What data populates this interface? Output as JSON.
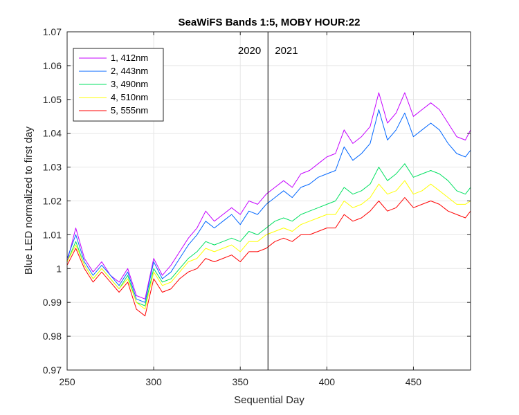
{
  "chart_data": {
    "type": "line",
    "title": "SeaWiFS Bands 1:5, MOBY HOUR:22",
    "xlabel": "Sequential Day",
    "ylabel": "Blue LED normalized to first day",
    "xlim": [
      250,
      483
    ],
    "ylim": [
      0.97,
      1.07
    ],
    "xticks": [
      "250",
      "300",
      "350",
      "400",
      "450"
    ],
    "yticks": [
      "0.97",
      "0.98",
      "0.99",
      "1",
      "1.01",
      "1.02",
      "1.03",
      "1.04",
      "1.05",
      "1.06",
      "1.07"
    ],
    "grid": true,
    "legend_position": "top-left",
    "vertical_line_x": 366,
    "annotations": [
      "2020",
      "2021"
    ],
    "x": [
      250,
      255,
      260,
      265,
      270,
      275,
      280,
      285,
      290,
      295,
      300,
      305,
      310,
      315,
      320,
      325,
      330,
      335,
      340,
      345,
      350,
      355,
      360,
      365,
      370,
      375,
      380,
      385,
      390,
      395,
      400,
      405,
      410,
      415,
      420,
      425,
      430,
      435,
      440,
      445,
      450,
      455,
      460,
      465,
      470,
      475,
      480,
      483
    ],
    "series": [
      {
        "name": "1, 412nm",
        "color": "#c400ff",
        "values": [
          1.002,
          1.012,
          1.003,
          0.999,
          1.002,
          0.998,
          0.996,
          1.0,
          0.992,
          0.991,
          1.003,
          0.998,
          1.001,
          1.005,
          1.009,
          1.012,
          1.017,
          1.014,
          1.016,
          1.018,
          1.016,
          1.02,
          1.019,
          1.022,
          1.024,
          1.026,
          1.024,
          1.028,
          1.029,
          1.031,
          1.033,
          1.034,
          1.041,
          1.037,
          1.039,
          1.042,
          1.052,
          1.043,
          1.046,
          1.052,
          1.045,
          1.047,
          1.049,
          1.047,
          1.043,
          1.039,
          1.038,
          1.041
        ]
      },
      {
        "name": "2, 443nm",
        "color": "#0066ff",
        "values": [
          1.003,
          1.01,
          1.002,
          0.998,
          1.001,
          0.998,
          0.995,
          0.999,
          0.991,
          0.99,
          1.002,
          0.997,
          0.999,
          1.003,
          1.007,
          1.01,
          1.014,
          1.012,
          1.014,
          1.016,
          1.013,
          1.017,
          1.016,
          1.019,
          1.021,
          1.023,
          1.021,
          1.024,
          1.025,
          1.027,
          1.028,
          1.029,
          1.036,
          1.032,
          1.034,
          1.037,
          1.047,
          1.038,
          1.041,
          1.046,
          1.039,
          1.041,
          1.043,
          1.041,
          1.037,
          1.034,
          1.033,
          1.035
        ]
      },
      {
        "name": "3, 490nm",
        "color": "#00e060",
        "values": [
          1.002,
          1.008,
          1.001,
          0.997,
          1.0,
          0.997,
          0.994,
          0.998,
          0.99,
          0.989,
          1.0,
          0.996,
          0.997,
          1.0,
          1.003,
          1.005,
          1.008,
          1.007,
          1.008,
          1.009,
          1.008,
          1.011,
          1.01,
          1.012,
          1.014,
          1.015,
          1.014,
          1.016,
          1.017,
          1.018,
          1.019,
          1.02,
          1.024,
          1.022,
          1.023,
          1.025,
          1.03,
          1.026,
          1.028,
          1.031,
          1.027,
          1.028,
          1.029,
          1.028,
          1.026,
          1.023,
          1.022,
          1.024
        ]
      },
      {
        "name": "4, 510nm",
        "color": "#ffff00",
        "values": [
          1.002,
          1.007,
          1.001,
          0.997,
          1.0,
          0.997,
          0.994,
          0.997,
          0.99,
          0.988,
          0.999,
          0.995,
          0.996,
          0.999,
          1.002,
          1.003,
          1.006,
          1.005,
          1.006,
          1.007,
          1.005,
          1.008,
          1.008,
          1.01,
          1.011,
          1.012,
          1.011,
          1.013,
          1.014,
          1.015,
          1.016,
          1.016,
          1.02,
          1.018,
          1.019,
          1.021,
          1.025,
          1.022,
          1.023,
          1.026,
          1.022,
          1.023,
          1.025,
          1.023,
          1.021,
          1.019,
          1.019,
          1.02
        ]
      },
      {
        "name": "5, 555nm",
        "color": "#ff0000",
        "values": [
          1.001,
          1.006,
          1.0,
          0.996,
          0.999,
          0.996,
          0.993,
          0.996,
          0.988,
          0.986,
          0.997,
          0.993,
          0.994,
          0.997,
          0.999,
          1.0,
          1.003,
          1.002,
          1.003,
          1.004,
          1.002,
          1.005,
          1.005,
          1.006,
          1.008,
          1.009,
          1.008,
          1.01,
          1.01,
          1.011,
          1.012,
          1.012,
          1.016,
          1.014,
          1.015,
          1.017,
          1.02,
          1.017,
          1.018,
          1.021,
          1.018,
          1.019,
          1.02,
          1.019,
          1.017,
          1.016,
          1.015,
          1.017
        ]
      }
    ]
  }
}
